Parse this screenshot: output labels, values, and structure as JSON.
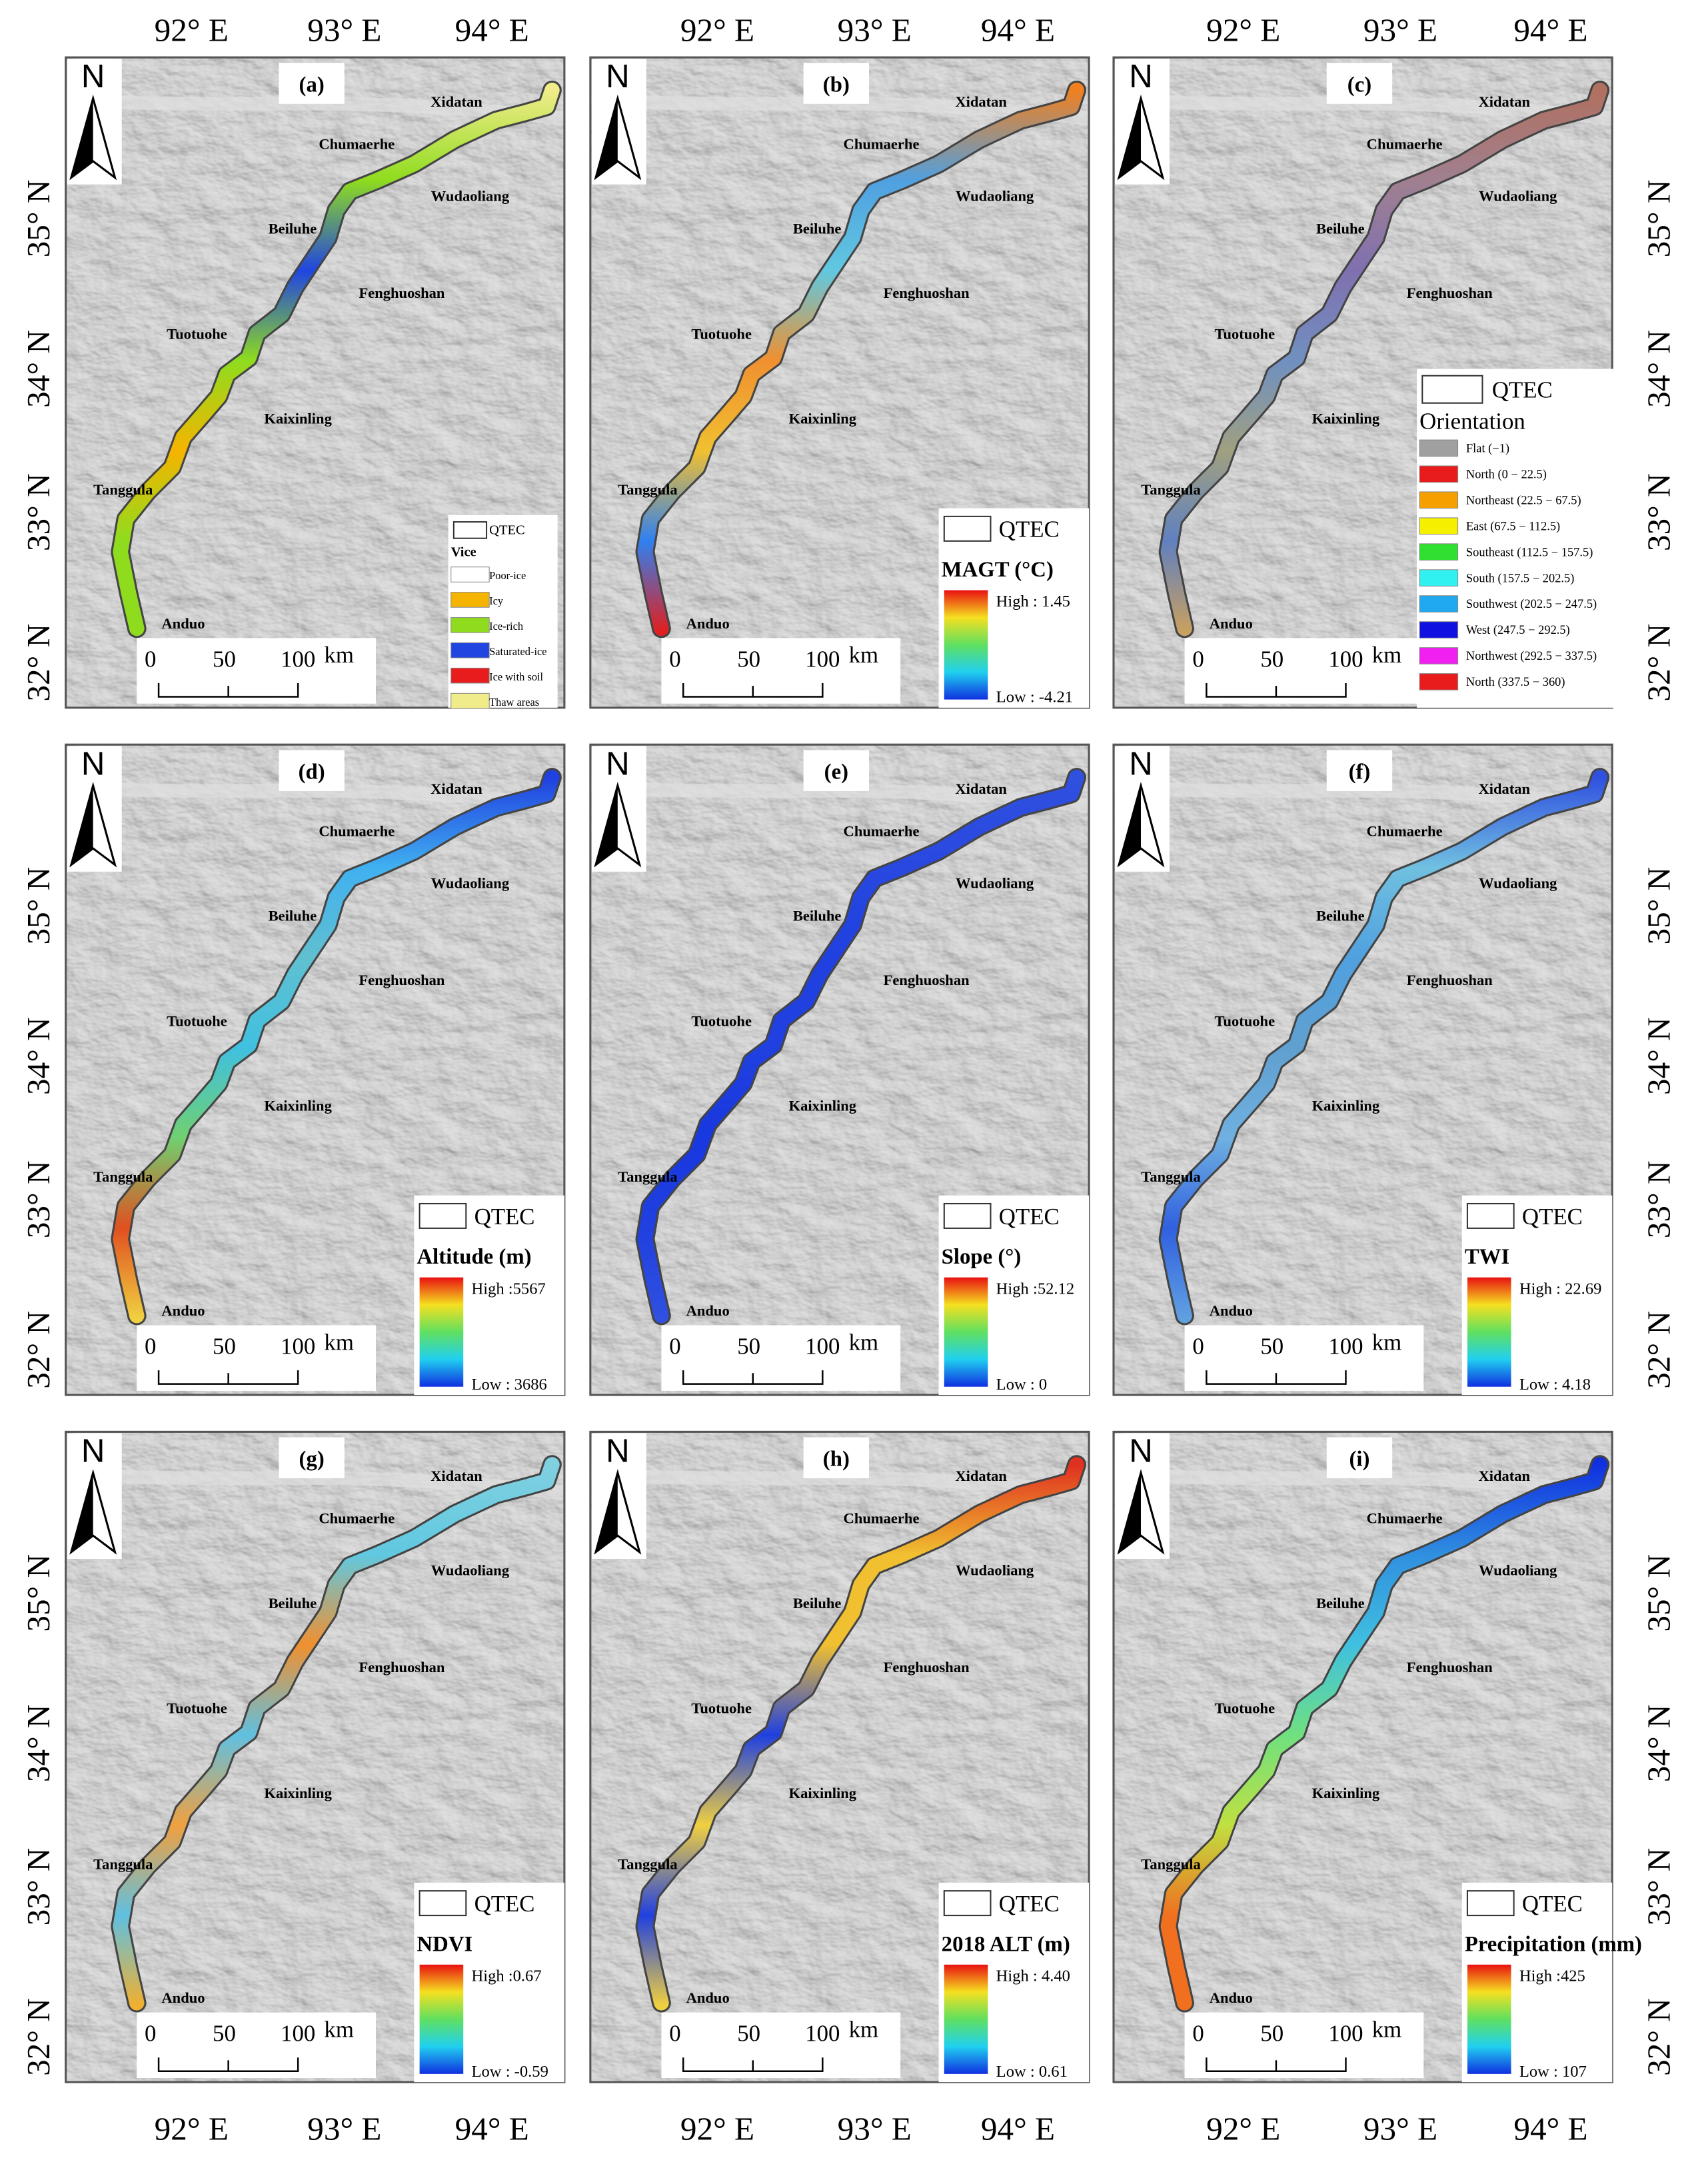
{
  "longitude_labels": [
    "92° E",
    "93° E",
    "94° E"
  ],
  "latitude_labels": [
    "32° N",
    "33° N",
    "34° N",
    "35° N"
  ],
  "north_label": "N",
  "place_names": [
    "Xidatan",
    "Chumaerhe",
    "Wudaoliang",
    "Beiluhe",
    "Fenghuoshan",
    "Tuotuohe",
    "Kaixinling",
    "Tanggula",
    "Anduo"
  ],
  "scale_bar": {
    "ticks": [
      "0",
      "50",
      "100"
    ],
    "unit": "km"
  },
  "qtec_label": "QTEC",
  "panels": [
    {
      "label": "(a)",
      "legend": {
        "title": "Vice",
        "items": [
          {
            "name": "Poor-ice",
            "color": "#ffffff"
          },
          {
            "name": "Icy",
            "color": "#f5b400"
          },
          {
            "name": "Ice-rich",
            "color": "#8fdc1e"
          },
          {
            "name": "Saturated-ice",
            "color": "#2045e0"
          },
          {
            "name": "Ice with soil",
            "color": "#e81c1c"
          },
          {
            "name": "Thaw areas",
            "color": "#f0ec8a"
          }
        ]
      }
    },
    {
      "label": "(b)",
      "legend": {
        "title": "MAGT (°C)",
        "high": "High : 1.45",
        "low": "Low : -4.21"
      }
    },
    {
      "label": "(c)",
      "legend": {
        "title": "Orientation",
        "items": [
          {
            "name": "Flat (−1)",
            "color": "#a0a0a0"
          },
          {
            "name": "North (0 − 22.5)",
            "color": "#e81c1c"
          },
          {
            "name": "Northeast (22.5 − 67.5)",
            "color": "#f5a000"
          },
          {
            "name": "East (67.5 − 112.5)",
            "color": "#f5f000"
          },
          {
            "name": "Southeast (112.5 − 157.5)",
            "color": "#30e030"
          },
          {
            "name": "South (157.5 − 202.5)",
            "color": "#30f0f0"
          },
          {
            "name": "Southwest (202.5 − 247.5)",
            "color": "#20a8f0"
          },
          {
            "name": "West (247.5 − 292.5)",
            "color": "#1010e0"
          },
          {
            "name": "Northwest (292.5 − 337.5)",
            "color": "#f020f0"
          },
          {
            "name": "North (337.5 − 360)",
            "color": "#e81c1c"
          }
        ]
      }
    },
    {
      "label": "(d)",
      "legend": {
        "title": "Altitude (m)",
        "high": "High :5567",
        "low": "Low : 3686"
      }
    },
    {
      "label": "(e)",
      "legend": {
        "title": "Slope (°)",
        "high": "High :52.12",
        "low": "Low : 0"
      }
    },
    {
      "label": "(f)",
      "legend": {
        "title": "TWI",
        "high": "High : 22.69",
        "low": "Low : 4.18"
      }
    },
    {
      "label": "(g)",
      "legend": {
        "title": "NDVI",
        "high": "High :0.67",
        "low": "Low : -0.59"
      }
    },
    {
      "label": "(h)",
      "legend": {
        "title": "2018 ALT (m)",
        "high": "High : 4.40",
        "low": "Low : 0.61"
      }
    },
    {
      "label": "(i)",
      "legend": {
        "title": "Precipitation (mm)",
        "high": "High :425",
        "low": "Low : 107"
      }
    }
  ]
}
